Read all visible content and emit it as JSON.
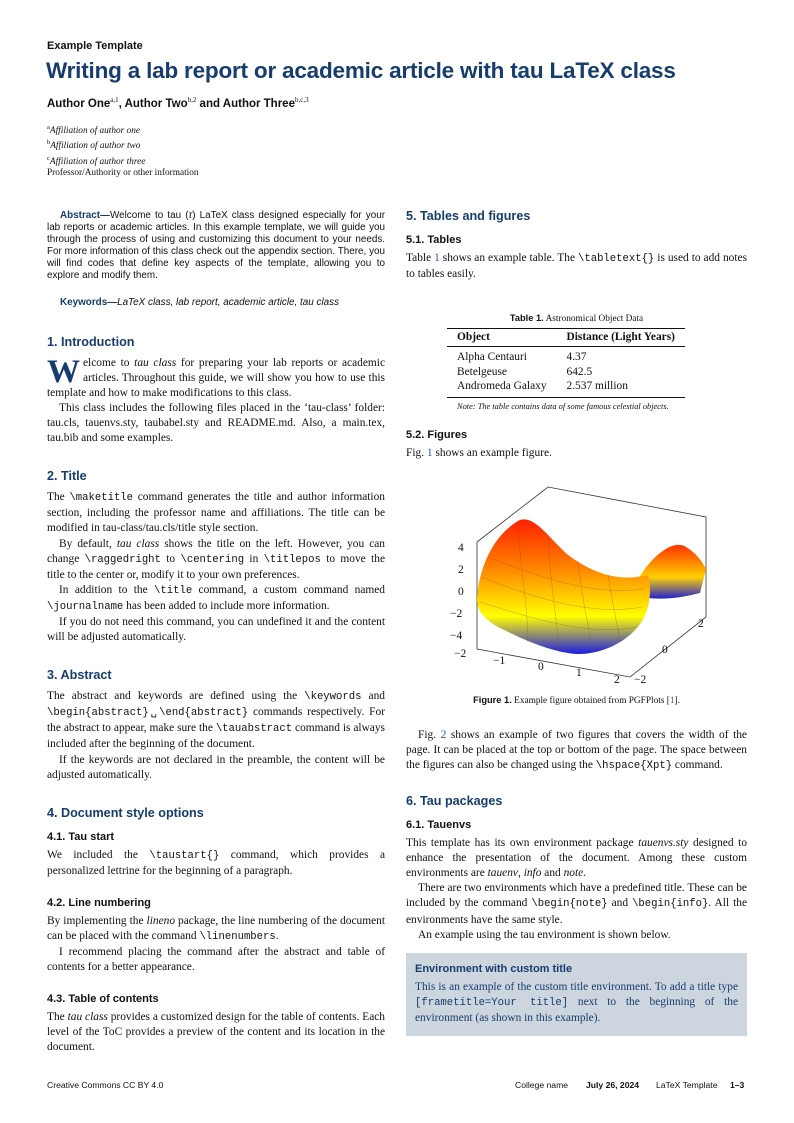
{
  "header": {
    "kicker": "Example Template",
    "title_prefix": "Writing a lab report or academic article with tau ",
    "title_latex": "LaTeX",
    "title_suffix": " class",
    "authors": [
      {
        "name": "Author One",
        "sup": "a,1"
      },
      {
        "name": "Author Two",
        "sup": "b,2"
      },
      {
        "name": "Author Three",
        "sup": "b,c,3"
      }
    ],
    "author_sep1": ", ",
    "author_sep2": " and ",
    "affiliations": [
      {
        "mark": "a",
        "text": "Affiliation of author one"
      },
      {
        "mark": "b",
        "text": "Affiliation of author two"
      },
      {
        "mark": "c",
        "text": "Affiliation of author three"
      }
    ],
    "professor": "Professor/Authority or other information"
  },
  "abstract": {
    "label": "Abstract—",
    "segments": [
      "Welcome to tau (",
      {
        "i": "τ"
      },
      ") ",
      {
        "latex": "LaTeX"
      },
      " class designed especially for your lab reports or academic articles. In this example template, we will guide you through the process of using and customizing this document to your needs. For more information of this class check out the appendix section. There, you will find codes that define key aspects of the template, allowing you to explore and modify them."
    ]
  },
  "keywords": {
    "label": "Keywords—",
    "segments": [
      {
        "latex": "LaTeX"
      },
      " class, lab report, academic article, tau class"
    ]
  },
  "sections": {
    "intro": {
      "heading": "1.  Introduction",
      "dropcap": "W",
      "paragraphs": [
        [
          "elcome to ",
          {
            "i": "tau class"
          },
          " for preparing your lab reports or academic articles. Throughout this guide, we will show you how to use this template and how to make modifications to this class."
        ],
        [
          "This class includes the following files placed in the ‘tau-class’ folder: tau.cls, tauenvs.sty, taubabel.sty and README.md. Also, a main.tex, tau.bib and some examples."
        ]
      ]
    },
    "title": {
      "heading": "2.  Title",
      "paragraphs": [
        [
          "The ",
          {
            "c": "\\maketitle"
          },
          " command generates the title and author information section, including the professor name and affiliations. The title can be modified in tau-class/tau.cls/title style section."
        ],
        [
          "By default, ",
          {
            "i": "tau class"
          },
          " shows the title on the left. However, you can change ",
          {
            "c": "\\raggedright"
          },
          " to ",
          {
            "c": "\\centering"
          },
          " in ",
          {
            "c": "\\titlepos"
          },
          " to move the title to the center or, modify it to your own preferences."
        ],
        [
          "In addition to the ",
          {
            "c": "\\title"
          },
          " command, a custom command named ",
          {
            "c": "\\journalname"
          },
          " has been added to include more information."
        ],
        [
          "If you do not need this command, you can undefined it and the content will be adjusted automatically."
        ]
      ]
    },
    "abstract_sec": {
      "heading": "3.  Abstract",
      "paragraphs": [
        [
          "The abstract and keywords are defined using the ",
          {
            "c": "\\keywords"
          },
          " and ",
          {
            "c": "\\begin{abstract}␣\\end{abstract}"
          },
          " commands respectively. For the abstract to appear, make sure the ",
          {
            "c": "\\tauabstract"
          },
          " command is always included after the beginning of the document."
        ],
        [
          "If the keywords are not declared in the preamble, the content will be adjusted automatically."
        ]
      ]
    },
    "docstyle": {
      "heading": "4.  Document style options",
      "sub1": {
        "heading": "4.1.  Tau start",
        "paragraphs": [
          [
            "We included the ",
            {
              "c": "\\taustart{}"
            },
            " command, which provides a personalized lettrine for the beginning of a paragraph."
          ]
        ]
      },
      "sub2": {
        "heading": "4.2.  Line numbering",
        "paragraphs": [
          [
            "By implementing the ",
            {
              "i": "lineno"
            },
            " package, the line numbering of the document can be placed with the command ",
            {
              "c": "\\linenumbers"
            },
            "."
          ],
          [
            "I recommend placing the command after the abstract and table of contents for a better appearance."
          ]
        ]
      },
      "sub3": {
        "heading": "4.3.  Table of contents",
        "paragraphs": [
          [
            "The ",
            {
              "i": "tau class"
            },
            " provides a customized design for the table of contents. Each level of the ToC provides a preview of the content and its location in the document."
          ]
        ]
      }
    },
    "tables_figures": {
      "heading": "5.  Tables and figures",
      "sub1": {
        "heading": "5.1.  Tables",
        "paragraphs": [
          [
            "Table ",
            {
              "r": "1"
            },
            " shows an example table. The ",
            {
              "c": "\\tabletext{}"
            },
            " is used to add notes to tables easily."
          ]
        ]
      },
      "table": {
        "caption_label": "Table 1.",
        "caption": " Astronomical Object Data",
        "columns": [
          "Object",
          "Distance (Light Years)"
        ],
        "rows": [
          [
            "Alpha Centauri",
            "4.37"
          ],
          [
            "Betelgeuse",
            "642.5"
          ],
          [
            "Andromeda Galaxy",
            "2.537 million"
          ]
        ],
        "note": "Note: The table contains data of some famous celestial objects."
      },
      "sub2": {
        "heading": "5.2.  Figures",
        "paragraphs": [
          [
            "Fig. ",
            {
              "r": "1"
            },
            " shows an example figure."
          ]
        ]
      },
      "figure": {
        "z_ticks": [
          "4",
          "2",
          "0",
          "−2",
          "−4"
        ],
        "x_ticks": [
          "−2",
          "−1",
          "0",
          "1",
          "2"
        ],
        "y_ticks": [
          "−2",
          "0",
          "2"
        ],
        "colormap": [
          "#1a1ae6",
          "#ffff00",
          "#ff8000",
          "#ff2000"
        ],
        "caption_label": "Figure 1.",
        "caption": " Example figure obtained from PGFPlots [",
        "caption_ref": "1",
        "caption_end": "]."
      },
      "after_fig": [
        [
          "Fig. ",
          {
            "r": "2"
          },
          " shows an example of two figures that covers the width of the page. It can be placed at the top or bottom of the page. The space between the figures can also be changed using the ",
          {
            "c": "\\hspace{Xpt}"
          },
          " command."
        ]
      ]
    },
    "packages": {
      "heading": "6.  Tau packages",
      "sub1": {
        "heading": "6.1.  Tauenvs",
        "paragraphs": [
          [
            "This template has its own environment package ",
            {
              "i": "tauenvs.sty"
            },
            " designed to enhance the presentation of the document. Among these custom environments are ",
            {
              "i": "tauenv"
            },
            ", ",
            {
              "i": "info"
            },
            " and ",
            {
              "i": "note"
            },
            "."
          ],
          [
            "There are two environments which have a predefined title. These can be included by the command ",
            {
              "c": "\\begin{note}"
            },
            " and ",
            {
              "c": "\\begin{info}"
            },
            ". All the environments have the same style."
          ],
          [
            "An example using the tau environment is shown below."
          ]
        ]
      },
      "envbox": {
        "title": "Environment with custom title",
        "segments": [
          "This is an example of the custom title environment. To add a title type ",
          {
            "c": "[frametitle=Your title]"
          },
          " next to the beginning of the environment (as shown in this example)."
        ]
      }
    }
  },
  "footer": {
    "license": "Creative Commons CC BY 4.0",
    "college": "College name",
    "date": "July 26, 2024",
    "template_latex": "LaTeX",
    "template_suffix": " Template",
    "pages": "1–3"
  }
}
